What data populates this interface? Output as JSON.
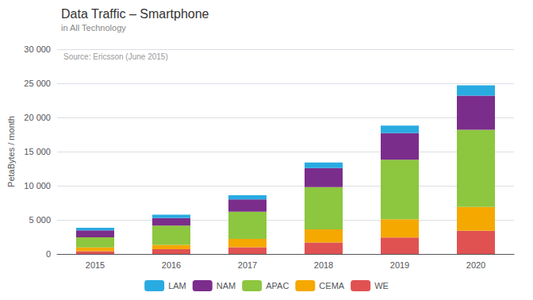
{
  "chart_data": {
    "type": "bar",
    "title": "Data Traffic – Smartphone",
    "subtitle": "in All Technology",
    "annotation": "Source: Ericsson (June 2015)",
    "y_label": "PetaBytes / month",
    "categories": [
      "2015",
      "2016",
      "2017",
      "2018",
      "2019",
      "2020"
    ],
    "series": [
      {
        "name": "WE",
        "color": "#e05252",
        "values": [
          400,
          700,
          1000,
          1700,
          2400,
          3400
        ]
      },
      {
        "name": "CEMA",
        "color": "#f5a800",
        "values": [
          550,
          650,
          1200,
          1900,
          2700,
          3500
        ]
      },
      {
        "name": "APAC",
        "color": "#8dc63f",
        "values": [
          1500,
          2800,
          4000,
          6200,
          8700,
          11300
        ]
      },
      {
        "name": "NAM",
        "color": "#7b2d8b",
        "values": [
          1000,
          1100,
          1800,
          2800,
          3900,
          5000
        ]
      },
      {
        "name": "LAM",
        "color": "#29abe2",
        "values": [
          400,
          500,
          600,
          800,
          1100,
          1500
        ]
      }
    ],
    "stacked": true,
    "ylim": [
      0,
      30000
    ],
    "yticks": [
      0,
      {
        "value": 5000,
        "label": "5 000"
      },
      {
        "value": 10000,
        "label": "10 000"
      },
      {
        "value": 15000,
        "label": "15 000"
      },
      {
        "value": 20000,
        "label": "20 000"
      },
      {
        "value": 25000,
        "label": "25 000"
      },
      {
        "value": 30000,
        "label": "30 000"
      }
    ],
    "grid": true,
    "legend": "bottom"
  }
}
